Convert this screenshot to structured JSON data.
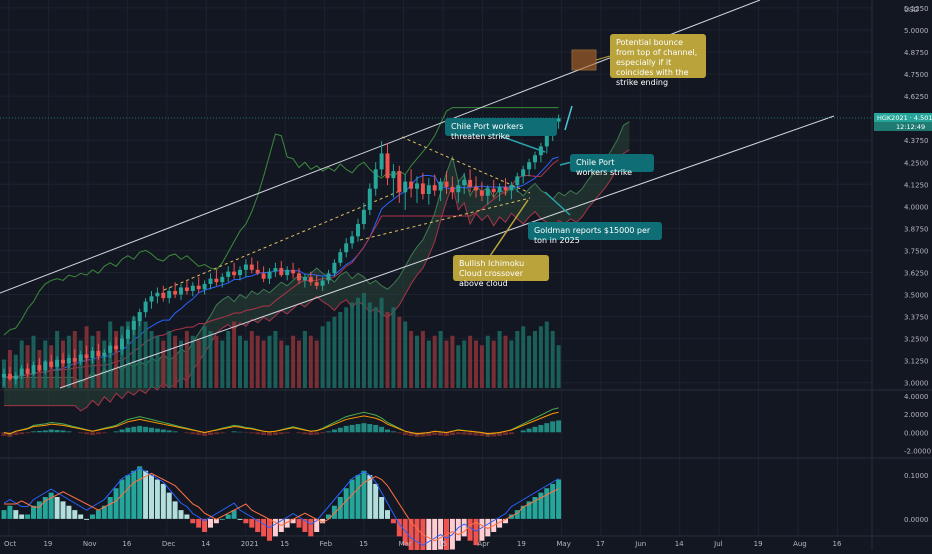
{
  "chart_data": {
    "type": "candlestick",
    "currency": "USD",
    "symbol_badge": "HGK2021 · 4.5010",
    "countdown": "12:12:49",
    "price_axis_ticks": [
      "5.1250",
      "5.0000",
      "4.8750",
      "4.7500",
      "4.6250",
      "4.3750",
      "4.2500",
      "4.1250",
      "4.0000",
      "3.8750",
      "3.7500",
      "3.6250",
      "3.5000",
      "3.3750",
      "3.2500",
      "3.1250",
      "3.0000"
    ],
    "price_axis_values": [
      5.125,
      5.0,
      4.875,
      4.75,
      4.625,
      4.375,
      4.25,
      4.125,
      4.0,
      3.875,
      3.75,
      3.625,
      3.5,
      3.375,
      3.25,
      3.125,
      3.0
    ],
    "ylim": [
      2.97,
      5.17
    ],
    "last_price": 4.501,
    "x_axis_labels": [
      "Oct",
      "19",
      "Nov",
      "16",
      "Dec",
      "14",
      "2021",
      "15",
      "Feb",
      "15",
      "Mar",
      "15",
      "Apr",
      "19",
      "May",
      "17",
      "Jun",
      "14",
      "Jul",
      "19",
      "Aug",
      "16"
    ],
    "candles": [
      [
        3.03,
        3.08,
        2.98,
        3.05
      ],
      [
        3.05,
        3.09,
        3.01,
        3.02
      ],
      [
        3.02,
        3.06,
        2.99,
        3.04
      ],
      [
        3.04,
        3.1,
        3.02,
        3.08
      ],
      [
        3.08,
        3.11,
        3.03,
        3.05
      ],
      [
        3.05,
        3.12,
        3.04,
        3.1
      ],
      [
        3.1,
        3.14,
        3.06,
        3.07
      ],
      [
        3.07,
        3.13,
        3.05,
        3.12
      ],
      [
        3.12,
        3.16,
        3.08,
        3.09
      ],
      [
        3.09,
        3.15,
        3.07,
        3.13
      ],
      [
        3.13,
        3.17,
        3.09,
        3.11
      ],
      [
        3.11,
        3.16,
        3.08,
        3.14
      ],
      [
        3.14,
        3.19,
        3.1,
        3.12
      ],
      [
        3.12,
        3.18,
        3.1,
        3.16
      ],
      [
        3.16,
        3.21,
        3.12,
        3.14
      ],
      [
        3.14,
        3.2,
        3.11,
        3.18
      ],
      [
        3.18,
        3.22,
        3.13,
        3.15
      ],
      [
        3.15,
        3.19,
        3.12,
        3.17
      ],
      [
        3.17,
        3.23,
        3.14,
        3.21
      ],
      [
        3.21,
        3.26,
        3.17,
        3.19
      ],
      [
        3.19,
        3.27,
        3.16,
        3.25
      ],
      [
        3.25,
        3.32,
        3.22,
        3.3
      ],
      [
        3.3,
        3.38,
        3.27,
        3.35
      ],
      [
        3.35,
        3.42,
        3.32,
        3.4
      ],
      [
        3.4,
        3.48,
        3.37,
        3.46
      ],
      [
        3.46,
        3.52,
        3.42,
        3.49
      ],
      [
        3.49,
        3.54,
        3.45,
        3.51
      ],
      [
        3.51,
        3.55,
        3.46,
        3.48
      ],
      [
        3.48,
        3.54,
        3.45,
        3.52
      ],
      [
        3.52,
        3.57,
        3.48,
        3.5
      ],
      [
        3.5,
        3.56,
        3.47,
        3.54
      ],
      [
        3.54,
        3.58,
        3.5,
        3.52
      ],
      [
        3.52,
        3.57,
        3.49,
        3.55
      ],
      [
        3.55,
        3.6,
        3.51,
        3.53
      ],
      [
        3.53,
        3.58,
        3.5,
        3.56
      ],
      [
        3.56,
        3.62,
        3.53,
        3.59
      ],
      [
        3.59,
        3.64,
        3.55,
        3.57
      ],
      [
        3.57,
        3.62,
        3.54,
        3.6
      ],
      [
        3.6,
        3.66,
        3.57,
        3.63
      ],
      [
        3.63,
        3.68,
        3.59,
        3.61
      ],
      [
        3.61,
        3.66,
        3.58,
        3.64
      ],
      [
        3.64,
        3.7,
        3.6,
        3.67
      ],
      [
        3.67,
        3.71,
        3.62,
        3.64
      ],
      [
        3.64,
        3.69,
        3.61,
        3.62
      ],
      [
        3.62,
        3.66,
        3.57,
        3.59
      ],
      [
        3.59,
        3.65,
        3.56,
        3.63
      ],
      [
        3.63,
        3.68,
        3.6,
        3.65
      ],
      [
        3.65,
        3.69,
        3.6,
        3.61
      ],
      [
        3.61,
        3.66,
        3.58,
        3.64
      ],
      [
        3.64,
        3.68,
        3.59,
        3.62
      ],
      [
        3.62,
        3.65,
        3.56,
        3.58
      ],
      [
        3.58,
        3.62,
        3.54,
        3.6
      ],
      [
        3.6,
        3.63,
        3.55,
        3.57
      ],
      [
        3.57,
        3.61,
        3.53,
        3.55
      ],
      [
        3.55,
        3.6,
        3.52,
        3.58
      ],
      [
        3.58,
        3.64,
        3.56,
        3.62
      ],
      [
        3.62,
        3.7,
        3.6,
        3.68
      ],
      [
        3.68,
        3.76,
        3.66,
        3.74
      ],
      [
        3.74,
        3.82,
        3.71,
        3.79
      ],
      [
        3.79,
        3.86,
        3.76,
        3.83
      ],
      [
        3.83,
        3.93,
        3.8,
        3.9
      ],
      [
        3.9,
        4.02,
        3.87,
        3.98
      ],
      [
        3.98,
        4.13,
        3.95,
        4.1
      ],
      [
        4.1,
        4.25,
        4.06,
        4.21
      ],
      [
        4.21,
        4.37,
        4.17,
        4.3
      ],
      [
        4.3,
        4.36,
        4.12,
        4.16
      ],
      [
        4.16,
        4.24,
        4.05,
        4.2
      ],
      [
        4.2,
        4.23,
        4.02,
        4.08
      ],
      [
        4.08,
        4.18,
        3.98,
        4.14
      ],
      [
        4.14,
        4.21,
        4.05,
        4.1
      ],
      [
        4.1,
        4.17,
        4.02,
        4.13
      ],
      [
        4.13,
        4.19,
        4.04,
        4.07
      ],
      [
        4.07,
        4.16,
        4.01,
        4.12
      ],
      [
        4.12,
        4.18,
        4.06,
        4.09
      ],
      [
        4.09,
        4.16,
        4.03,
        4.14
      ],
      [
        4.14,
        4.2,
        4.07,
        4.11
      ],
      [
        4.11,
        4.17,
        4.04,
        4.08
      ],
      [
        4.08,
        4.15,
        4.02,
        4.12
      ],
      [
        4.12,
        4.19,
        4.07,
        4.15
      ],
      [
        4.15,
        4.21,
        4.08,
        4.11
      ],
      [
        4.11,
        4.17,
        4.05,
        4.09
      ],
      [
        4.09,
        4.14,
        4.03,
        4.06
      ],
      [
        4.06,
        4.12,
        4.01,
        4.1
      ],
      [
        4.1,
        4.15,
        4.05,
        4.08
      ],
      [
        4.08,
        4.13,
        4.03,
        4.11
      ],
      [
        4.11,
        4.16,
        4.06,
        4.09
      ],
      [
        4.09,
        4.14,
        4.04,
        4.12
      ],
      [
        4.12,
        4.19,
        4.08,
        4.17
      ],
      [
        4.17,
        4.23,
        4.13,
        4.21
      ],
      [
        4.21,
        4.27,
        4.17,
        4.25
      ],
      [
        4.25,
        4.31,
        4.21,
        4.29
      ],
      [
        4.29,
        4.36,
        4.25,
        4.34
      ],
      [
        4.34,
        4.43,
        4.3,
        4.4
      ],
      [
        4.4,
        4.5,
        4.37,
        4.48
      ],
      [
        4.48,
        4.52,
        4.44,
        4.5
      ]
    ],
    "volume_top": [
      0.3,
      0.4,
      0.35,
      0.5,
      0.45,
      0.55,
      0.4,
      0.5,
      0.45,
      0.6,
      0.5,
      0.55,
      0.6,
      0.5,
      0.65,
      0.55,
      0.6,
      0.5,
      0.7,
      0.6,
      0.65,
      0.7,
      0.75,
      0.8,
      0.7,
      0.6,
      0.55,
      0.5,
      0.6,
      0.55,
      0.5,
      0.6,
      0.55,
      0.5,
      0.65,
      0.6,
      0.55,
      0.5,
      0.6,
      0.7,
      0.55,
      0.5,
      0.6,
      0.55,
      0.5,
      0.55,
      0.6,
      0.5,
      0.45,
      0.55,
      0.5,
      0.6,
      0.55,
      0.5,
      0.65,
      0.7,
      0.75,
      0.8,
      0.85,
      0.9,
      0.95,
      1.0,
      0.9,
      0.85,
      0.95,
      0.8,
      0.85,
      0.75,
      0.7,
      0.6,
      0.55,
      0.6,
      0.5,
      0.55,
      0.6,
      0.5,
      0.55,
      0.45,
      0.5,
      0.55,
      0.5,
      0.45,
      0.55,
      0.5,
      0.6,
      0.55,
      0.5,
      0.6,
      0.65,
      0.55,
      0.6,
      0.65,
      0.7,
      0.6,
      0.45
    ],
    "macd_hist": [
      -0.4,
      -0.5,
      -0.3,
      -0.2,
      -0.1,
      0.1,
      0.15,
      0.2,
      0.3,
      0.25,
      0.2,
      0.1,
      0.0,
      -0.1,
      -0.2,
      -0.3,
      -0.2,
      -0.1,
      0.0,
      0.1,
      0.3,
      0.5,
      0.6,
      0.7,
      0.6,
      0.5,
      0.4,
      0.3,
      0.2,
      0.1,
      0.0,
      -0.1,
      -0.2,
      -0.3,
      -0.4,
      -0.3,
      -0.2,
      -0.1,
      0.0,
      0.1,
      0.05,
      -0.05,
      -0.1,
      -0.2,
      -0.3,
      -0.35,
      -0.3,
      -0.2,
      -0.1,
      0.0,
      -0.1,
      -0.2,
      -0.3,
      -0.25,
      -0.1,
      0.1,
      0.3,
      0.5,
      0.7,
      0.8,
      0.9,
      1.0,
      0.9,
      0.8,
      0.6,
      0.3,
      0.1,
      -0.1,
      -0.3,
      -0.4,
      -0.5,
      -0.45,
      -0.4,
      -0.3,
      -0.35,
      -0.4,
      -0.3,
      -0.2,
      -0.25,
      -0.3,
      -0.35,
      -0.4,
      -0.5,
      -0.45,
      -0.4,
      -0.3,
      -0.2,
      0.0,
      0.2,
      0.4,
      0.6,
      0.8,
      1.0,
      1.2,
      1.3
    ],
    "macd_ticks": [
      "4.0000",
      "2.0000",
      "0.0000",
      "-2.0000"
    ],
    "macd_tick_values": [
      4,
      2,
      0,
      -2
    ],
    "osc_hist": [
      0.02,
      0.03,
      0.02,
      0.01,
      0.01,
      0.03,
      0.04,
      0.05,
      0.06,
      0.05,
      0.04,
      0.03,
      0.02,
      0.01,
      0.0,
      0.01,
      0.02,
      0.03,
      0.05,
      0.07,
      0.09,
      0.1,
      0.11,
      0.12,
      0.11,
      0.1,
      0.09,
      0.08,
      0.06,
      0.04,
      0.02,
      0.01,
      -0.01,
      -0.02,
      -0.03,
      -0.02,
      -0.01,
      0.0,
      0.01,
      0.02,
      0.0,
      -0.01,
      -0.02,
      -0.03,
      -0.04,
      -0.05,
      -0.04,
      -0.03,
      -0.02,
      -0.01,
      -0.02,
      -0.03,
      -0.04,
      -0.03,
      -0.01,
      0.01,
      0.03,
      0.05,
      0.07,
      0.09,
      0.1,
      0.11,
      0.1,
      0.08,
      0.05,
      0.02,
      -0.01,
      -0.04,
      -0.06,
      -0.08,
      -0.09,
      -0.1,
      -0.09,
      -0.08,
      -0.07,
      -0.08,
      -0.07,
      -0.05,
      -0.04,
      -0.05,
      -0.06,
      -0.05,
      -0.04,
      -0.03,
      -0.02,
      -0.01,
      0.01,
      0.02,
      0.03,
      0.04,
      0.05,
      0.06,
      0.07,
      0.08,
      0.09
    ],
    "osc_ticks": [
      "0.1000",
      "0.0000"
    ],
    "osc_tick_values": [
      0.1,
      0.0
    ]
  },
  "annotations": {
    "potential_bounce": "Potential bounce from top of channel, especially if it coincides with the strike ending",
    "chile_port_threaten": "Chile Port workers threaten strike",
    "chile_port_strike": "Chile Port workers strike",
    "goldman": "Goldman reports $15000 per ton in 2025",
    "bullish_ichimoku": "Bullish Ichimoku Cloud crossover above cloud"
  },
  "colors": {
    "bg": "#131722",
    "up": "#26a69a",
    "down": "#ef5350",
    "teal_note": "#0f6e75",
    "olive_note": "#b9a33a",
    "channel": "#d1d4dc"
  }
}
